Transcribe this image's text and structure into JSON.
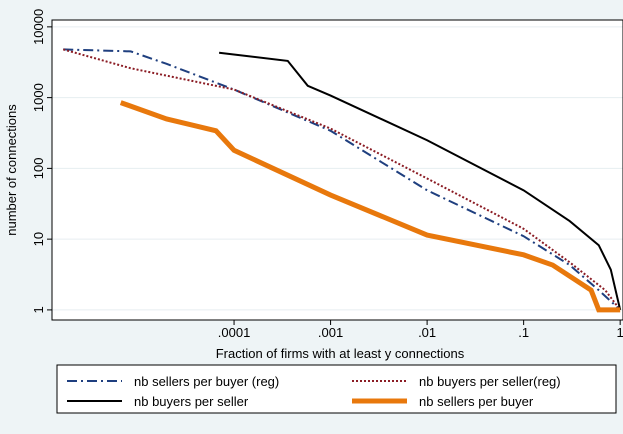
{
  "chart_data": {
    "type": "line",
    "xlabel": "Fraction of firms with at least y connections",
    "ylabel": "number of connections",
    "xscale": "log",
    "yscale": "log",
    "grid": true,
    "xlim": [
      1.3e-06,
      1.07
    ],
    "ylim": [
      0.72,
      12500
    ],
    "xticks": [
      {
        "value": 0.0001,
        "label": ".0001"
      },
      {
        "value": 0.001,
        "label": ".001"
      },
      {
        "value": 0.01,
        "label": ".01"
      },
      {
        "value": 0.1,
        "label": ".1"
      },
      1
    ],
    "yticks": [
      1,
      10,
      100,
      1000,
      10000
    ],
    "series": [
      {
        "name": "nb sellers per buyer (reg)",
        "color": "#1f3f7f",
        "dash": "10,4,2,4",
        "width": 2,
        "x": [
          1.7e-06,
          8.5e-06,
          2e-05,
          0.0001,
          0.001,
          0.01,
          0.1,
          0.3,
          0.6,
          1
        ],
        "values": [
          4800,
          4500,
          3000,
          1300,
          340,
          49,
          11,
          4.3,
          1.9,
          1
        ]
      },
      {
        "name": "nb buyers per seller(reg)",
        "color": "#8b1c24",
        "dash": "2,2",
        "width": 2,
        "x": [
          1.7e-06,
          8.5e-06,
          0.0001,
          0.001,
          0.01,
          0.1,
          0.3,
          0.7,
          1
        ],
        "values": [
          4800,
          2600,
          1300,
          365,
          72,
          14,
          4.7,
          1.9,
          1
        ]
      },
      {
        "name": "nb buyers per seller",
        "color": "#000000",
        "dash": "",
        "width": 2,
        "x": [
          7e-05,
          0.00036,
          0.00058,
          0.001,
          0.01,
          0.1,
          0.3,
          0.6,
          0.8,
          1
        ],
        "values": [
          4300,
          3300,
          1470,
          1070,
          250,
          49,
          18,
          8.2,
          3.7,
          1
        ]
      },
      {
        "name": "nb sellers per buyer",
        "color": "#e8780c",
        "dash": "",
        "width": 5,
        "x": [
          6.7e-06,
          2e-05,
          6.5e-05,
          0.0001,
          0.001,
          0.01,
          0.1,
          0.2,
          0.5,
          0.6,
          1
        ],
        "values": [
          850,
          500,
          340,
          180,
          42,
          11.4,
          6,
          4.3,
          1.9,
          1,
          1
        ]
      }
    ]
  }
}
